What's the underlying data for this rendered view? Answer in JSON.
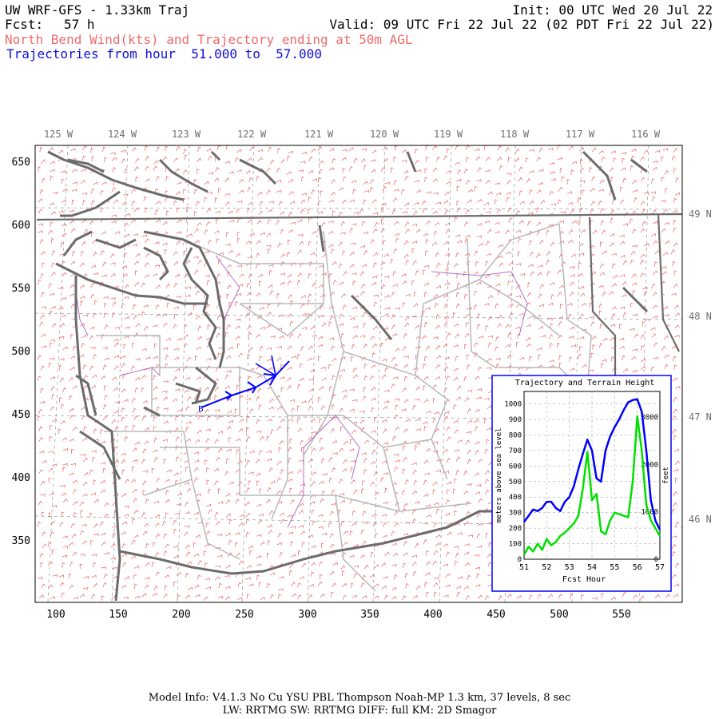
{
  "header": {
    "title": "UW WRF-GFS - 1.33km Traj",
    "init": "Init: 00 UTC Wed 20 Jul 22",
    "fcst_label": "Fcst:",
    "fcst_value": "57 h",
    "valid": "Valid: 09 UTC Fri 22 Jul 22 (02 PDT Fri 22 Jul 22)",
    "subtitle": "North Bend Wind(kts) and Trajectory ending at 50m AGL",
    "traj_range": "Trajectories from hour  51.000 to  57.000"
  },
  "map": {
    "lon_labels": [
      "125 W",
      "124 W",
      "123 W",
      "122 W",
      "121 W",
      "120 W",
      "119 W",
      "118 W",
      "117 W",
      "116 W"
    ],
    "lat_labels": [
      "49 N",
      "48 N",
      "47 N",
      "46 N"
    ],
    "x_ticks": [
      "100",
      "150",
      "200",
      "250",
      "300",
      "350",
      "400",
      "450",
      "500",
      "550"
    ],
    "y_ticks": [
      "650",
      "600",
      "550",
      "500",
      "450",
      "400",
      "350"
    ],
    "colors": {
      "wind_barbs": "#f07070",
      "coast": "#6b6b6b",
      "county": "#b8b8b8",
      "river": "#b070c8",
      "trajectory": "#0000ff"
    }
  },
  "inset": {
    "title": "Trajectory and Terrain Height",
    "xlabel": "Fcst Hour",
    "ylabel_left": "meters above sea level",
    "ylabel_right": "feet",
    "left_ticks": [
      "0",
      "100",
      "200",
      "300",
      "400",
      "500",
      "600",
      "700",
      "800",
      "900",
      "1000"
    ],
    "right_ticks": [
      "0",
      "1000",
      "2000",
      "3000"
    ],
    "x_ticks": [
      "51",
      "52",
      "53",
      "54",
      "55",
      "56",
      "57"
    ]
  },
  "chart_data": {
    "type": "line",
    "title": "Trajectory and Terrain Height",
    "xlabel": "Fcst Hour",
    "ylabel": "meters above sea level",
    "xlim": [
      51,
      57
    ],
    "ylim": [
      0,
      1080
    ],
    "grid": true,
    "series": [
      {
        "color": "#0000ff",
        "x": [
          51.0,
          51.2,
          51.4,
          51.6,
          51.8,
          52.0,
          52.2,
          52.4,
          52.6,
          52.8,
          53.0,
          53.2,
          53.4,
          53.6,
          53.8,
          54.0,
          54.2,
          54.4,
          54.6,
          54.8,
          55.0,
          55.2,
          55.4,
          55.6,
          55.8,
          56.0,
          56.2,
          56.4,
          56.6,
          56.8,
          57.0
        ],
        "y": [
          240,
          280,
          320,
          310,
          330,
          370,
          370,
          330,
          310,
          370,
          400,
          470,
          580,
          680,
          770,
          700,
          520,
          500,
          700,
          790,
          850,
          900,
          960,
          1010,
          1025,
          1030,
          950,
          700,
          380,
          250,
          190
        ]
      },
      {
        "color": "#00e000",
        "x": [
          51.0,
          51.2,
          51.4,
          51.6,
          51.8,
          52.0,
          52.2,
          52.4,
          52.6,
          52.8,
          53.0,
          53.2,
          53.4,
          53.6,
          53.8,
          54.0,
          54.2,
          54.4,
          54.6,
          54.8,
          55.0,
          55.2,
          55.4,
          55.6,
          55.8,
          56.0,
          56.2,
          56.4,
          56.6,
          56.8,
          57.0
        ],
        "y": [
          30,
          80,
          50,
          100,
          60,
          130,
          90,
          110,
          150,
          170,
          200,
          230,
          280,
          460,
          690,
          380,
          420,
          180,
          160,
          250,
          300,
          290,
          280,
          270,
          500,
          920,
          700,
          350,
          250,
          200,
          150
        ]
      }
    ]
  },
  "footer": {
    "line1": "Model Info: V4.1.3    No Cu    YSU PBL  Thompson     Noah-MP    1.3 km,  37 levels,    8 sec",
    "line2": "LW: RRTMG SW: RRTMG     DIFF: full    KM: 2D Smagor"
  }
}
